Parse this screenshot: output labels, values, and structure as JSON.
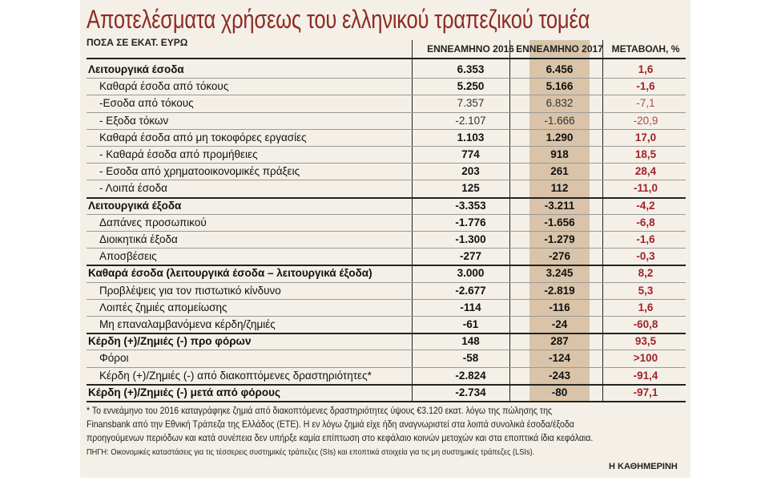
{
  "header": {
    "title": "Αποτελέσματα χρήσεως του ελληνικού τραπεζικού τομέα",
    "unit": "ΠΟΣΑ ΣΕ ΕΚΑΤ. ΕΥΡΩ"
  },
  "table": {
    "columns": [
      "ΕΝΝΕΑΜΗΝΟ 2016",
      "ΕΝΝΕΑΜΗΝΟ 2017",
      "ΜΕΤΑΒΟΛΗ, %"
    ],
    "rows": [
      [
        "Λειτουργικά έσοδα",
        "6.353",
        "6.456",
        "1,6"
      ],
      [
        "Καθαρά έσοδα από τόκους",
        "5.250",
        "5.166",
        "-1,6"
      ],
      [
        "-Εσοδα από τόκους",
        "7.357",
        "6.832",
        "-7,1"
      ],
      [
        "- Εξοδα τόκων",
        "-2.107",
        "-1.666",
        "-20,9"
      ],
      [
        "Καθαρά έσοδα από μη τοκοφόρες εργασίες",
        "1.103",
        "1.290",
        "17,0"
      ],
      [
        "- Καθαρά έσοδα από προμήθειες",
        "774",
        "918",
        "18,5"
      ],
      [
        "- Εσοδα από χρηματοοικονομικές πράξεις",
        "203",
        "261",
        "28,4"
      ],
      [
        "- Λοιπά έσοδα",
        "125",
        "112",
        "-11,0"
      ],
      [
        "Λειτουργικά έξοδα",
        "-3.353",
        "-3.211",
        "-4,2"
      ],
      [
        "Δαπάνες προσωπικού",
        "-1.776",
        "-1.656",
        "-6,8"
      ],
      [
        "Διοικητικά έξοδα",
        "-1.300",
        "-1.279",
        "-1,6"
      ],
      [
        "Αποσβέσεις",
        "-277",
        "-276",
        "-0,3"
      ],
      [
        "Καθαρά έσοδα (λειτουργικά έσοδα – λειτουργικά έξοδα)",
        "3.000",
        "3.245",
        "8,2"
      ],
      [
        "Προβλέψεις για τον πιστωτικό κίνδυνο",
        "-2.677",
        "-2.819",
        "5,3"
      ],
      [
        "Λοιπές ζημιές απομείωσης",
        "-114",
        "-116",
        "1,6"
      ],
      [
        "Μη επαναλαμβανόμενα κέρδη/ζημιές",
        "-61",
        "-24",
        "-60,8"
      ],
      [
        "Κέρδη (+)/Ζημιές (-) προ φόρων",
        "148",
        "287",
        "93,5"
      ],
      [
        "Φόροι",
        "-58",
        "-124",
        ">100"
      ],
      [
        "Κέρδη (+)/Ζημιές (-) από διακοπτόμενες δραστηριότητες*",
        "-2.824",
        "-243",
        "-91,4"
      ],
      [
        "Κέρδη (+)/Ζημιές (-) μετά από φόρους",
        "-2.734",
        "-80",
        "-97,1"
      ]
    ]
  },
  "footnote": [
    "* Το εννεάμηνο του 2016 καταγράφηκε ζημιά από διακοπτόμενες δραστηριότητες ύψους €3.120 εκατ. λόγω της πώλησης της",
    "Finansbank από την Εθνική Τράπεζα της Ελλάδος (ΕΤΕ). Η εν λόγω ζημιά είχε ήδη αναγνωριστεί στα λοιπά συνολικά έσοδα/έξοδα",
    "προηγούμενων περιόδων και κατά συνέπεια δεν υπήρξε καμία επίπτωση στο κεφάλαιο κοινών μετοχών και στα εποπτικά ίδια κεφάλαια."
  ],
  "source": "ΠΗΓΗ: Οικονομικές καταστάσεις για τις τέσσερεις συστημικές τράπεζες (SIs) και εποπτικά στοιχεία για τις μη συστημικές τράπεζες (LSIs).",
  "brand": "Η ΚΑΘΗΜΕΡΙΝΗ"
}
